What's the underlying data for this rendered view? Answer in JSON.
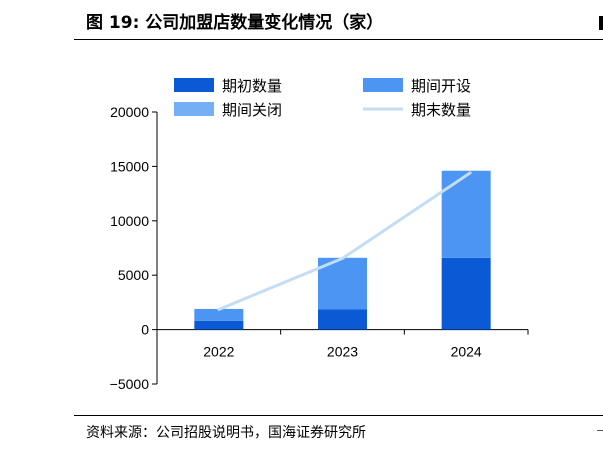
{
  "header": {
    "title": "图 19:  公司加盟店数量变化情况（家）"
  },
  "footer": {
    "source": "资料来源：公司招股说明书，国海证券研究所"
  },
  "chart_data": {
    "type": "bar",
    "stacked": true,
    "categories": [
      "2022",
      "2023",
      "2024"
    ],
    "series": [
      {
        "name": "期初数量",
        "kind": "bar",
        "color": "#0a5ad6",
        "values": [
          800,
          1850,
          6600
        ]
      },
      {
        "name": "期间开设",
        "kind": "bar",
        "color": "#4d95f2",
        "values": [
          1100,
          4750,
          8000
        ]
      },
      {
        "name": "期间关闭",
        "kind": "bar",
        "color": "#74aef5",
        "values": [
          0,
          0,
          0
        ]
      },
      {
        "name": "期末数量",
        "kind": "line",
        "color": "#c3ddf5",
        "values": [
          1850,
          6550,
          14400
        ]
      }
    ],
    "ylim": [
      -5000,
      20000
    ],
    "yticks": [
      -5000,
      0,
      5000,
      10000,
      15000,
      20000
    ],
    "ytick_labels": [
      "−5000",
      "0",
      "5000",
      "10000",
      "15000",
      "20000"
    ],
    "legend": {
      "placement": "top",
      "columns": 2
    },
    "grid": false
  }
}
